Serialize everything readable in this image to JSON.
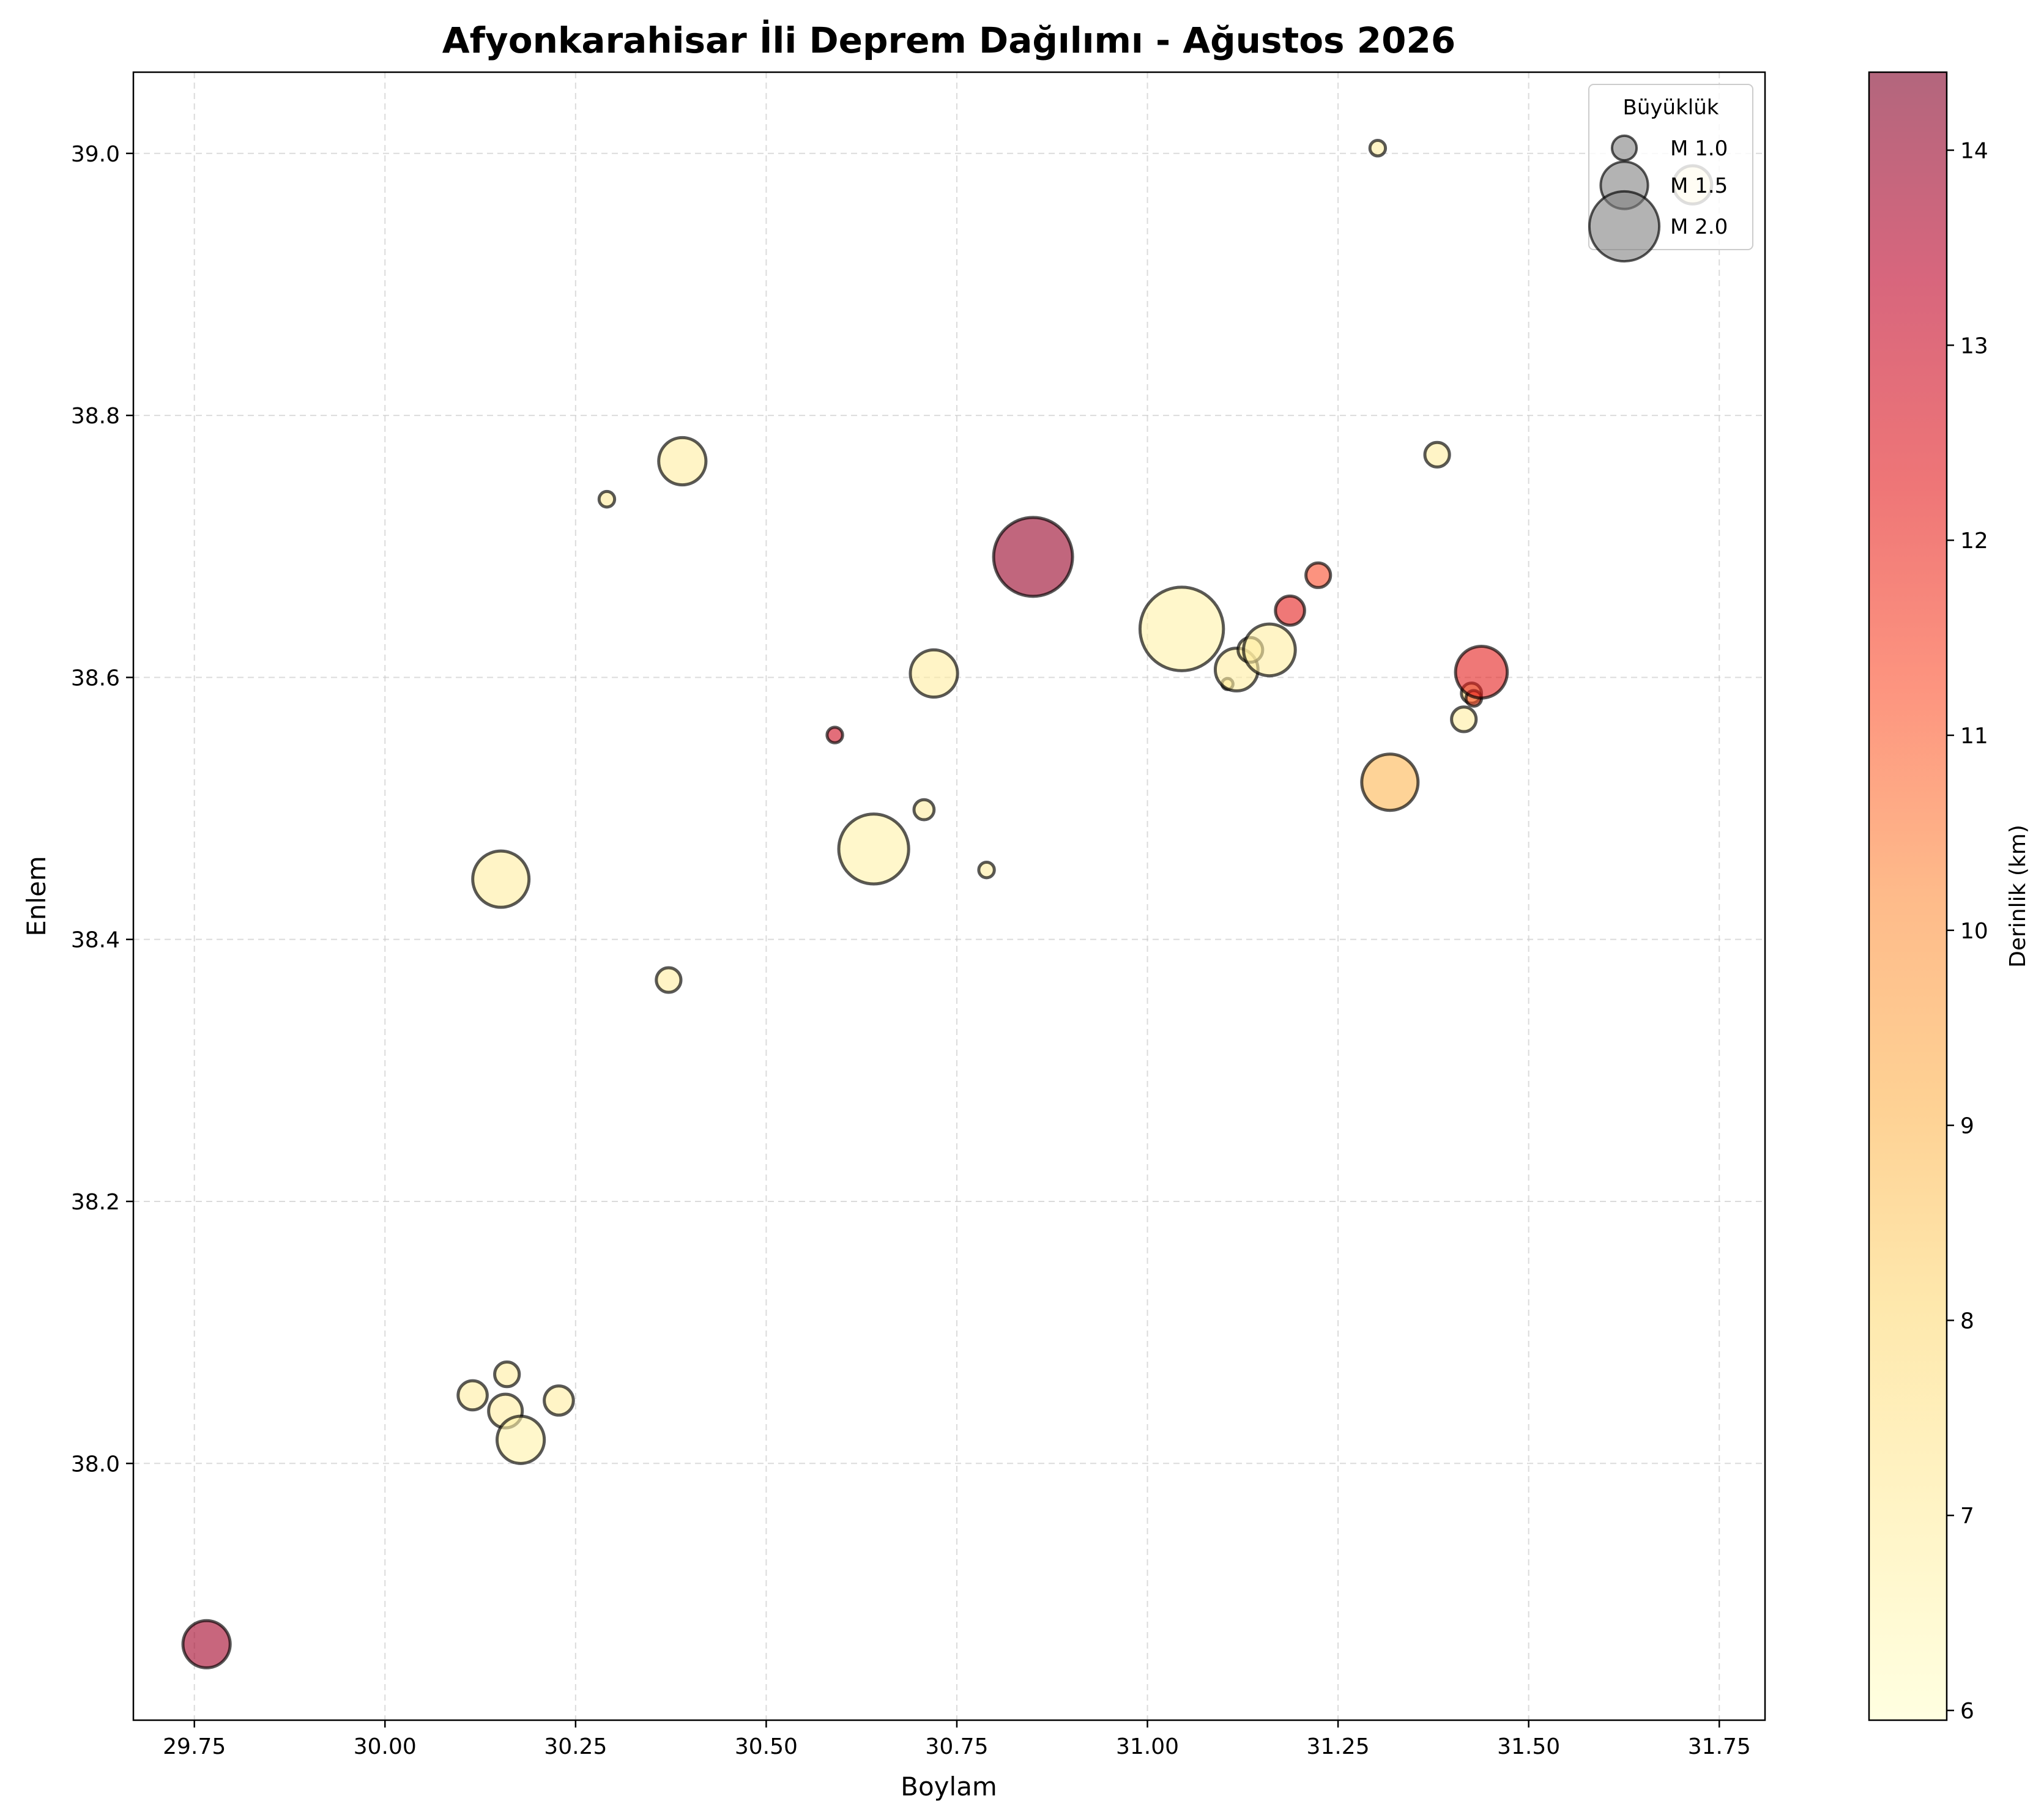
{
  "chart_data": {
    "type": "scatter",
    "title": "Afyonkarahisar İli Deprem Dağılımı - Ağustos 2026",
    "xlabel": "Boylam",
    "ylabel": "Enlem",
    "xlim": [
      29.67,
      31.81
    ],
    "ylim": [
      37.804,
      39.062
    ],
    "x_ticks": [
      "29.75",
      "30.00",
      "30.25",
      "30.50",
      "30.75",
      "31.00",
      "31.25",
      "31.50",
      "31.75"
    ],
    "y_ticks": [
      "38.0",
      "38.2",
      "38.4",
      "38.6",
      "38.8",
      "39.0"
    ],
    "grid": true,
    "colorbar": {
      "label": "Derinlik (km)",
      "min": 5.95,
      "max": 14.4,
      "ticks": [
        "6",
        "7",
        "8",
        "9",
        "10",
        "11",
        "12",
        "13",
        "14"
      ],
      "colormap": "YlOrRd"
    },
    "legend": {
      "title": "Büyüklük",
      "position": "top-right",
      "entries": [
        {
          "label": "M 1.0",
          "magnitude": 1.0
        },
        {
          "label": "M 1.5",
          "magnitude": 1.5
        },
        {
          "label": "M 2.0",
          "magnitude": 2.0
        }
      ]
    },
    "points": [
      {
        "lon": 29.766,
        "lat": 37.862,
        "mag": 1.5,
        "depth": 13.8
      },
      {
        "lon": 30.115,
        "lat": 38.052,
        "mag": 1.1,
        "depth": 7.0
      },
      {
        "lon": 30.16,
        "lat": 38.068,
        "mag": 1.0,
        "depth": 7.0
      },
      {
        "lon": 30.158,
        "lat": 38.04,
        "mag": 1.2,
        "depth": 7.0
      },
      {
        "lon": 30.178,
        "lat": 38.018,
        "mag": 1.5,
        "depth": 6.8
      },
      {
        "lon": 30.228,
        "lat": 38.048,
        "mag": 1.1,
        "depth": 7.0
      },
      {
        "lon": 30.152,
        "lat": 38.446,
        "mag": 1.7,
        "depth": 7.0
      },
      {
        "lon": 30.291,
        "lat": 38.736,
        "mag": 0.8,
        "depth": 7.2
      },
      {
        "lon": 30.39,
        "lat": 38.765,
        "mag": 1.5,
        "depth": 7.0
      },
      {
        "lon": 30.372,
        "lat": 38.369,
        "mag": 1.0,
        "depth": 7.0
      },
      {
        "lon": 30.59,
        "lat": 38.556,
        "mag": 0.8,
        "depth": 12.8
      },
      {
        "lon": 30.641,
        "lat": 38.469,
        "mag": 2.0,
        "depth": 6.8
      },
      {
        "lon": 30.707,
        "lat": 38.499,
        "mag": 0.9,
        "depth": 7.0
      },
      {
        "lon": 30.72,
        "lat": 38.603,
        "mag": 1.5,
        "depth": 7.0
      },
      {
        "lon": 30.789,
        "lat": 38.453,
        "mag": 0.8,
        "depth": 7.0
      },
      {
        "lon": 30.85,
        "lat": 38.692,
        "mag": 2.2,
        "depth": 14.0
      },
      {
        "lon": 31.045,
        "lat": 38.637,
        "mag": 2.3,
        "depth": 6.8
      },
      {
        "lon": 31.105,
        "lat": 38.595,
        "mag": 0.7,
        "depth": 7.5
      },
      {
        "lon": 31.117,
        "lat": 38.606,
        "mag": 1.4,
        "depth": 7.0
      },
      {
        "lon": 31.135,
        "lat": 38.621,
        "mag": 1.0,
        "depth": 7.0
      },
      {
        "lon": 31.16,
        "lat": 38.621,
        "mag": 1.6,
        "depth": 7.0
      },
      {
        "lon": 31.187,
        "lat": 38.651,
        "mag": 1.1,
        "depth": 12.2
      },
      {
        "lon": 31.224,
        "lat": 38.678,
        "mag": 1.0,
        "depth": 11.3
      },
      {
        "lon": 31.302,
        "lat": 39.004,
        "mag": 0.8,
        "depth": 7.0
      },
      {
        "lon": 31.318,
        "lat": 38.52,
        "mag": 1.7,
        "depth": 9.0
      },
      {
        "lon": 31.38,
        "lat": 38.77,
        "mag": 1.0,
        "depth": 7.0
      },
      {
        "lon": 31.415,
        "lat": 38.568,
        "mag": 1.0,
        "depth": 7.0
      },
      {
        "lon": 31.425,
        "lat": 38.588,
        "mag": 0.9,
        "depth": 8.0
      },
      {
        "lon": 31.428,
        "lat": 38.584,
        "mag": 0.8,
        "depth": 11.2
      },
      {
        "lon": 31.438,
        "lat": 38.604,
        "mag": 1.6,
        "depth": 12.2
      },
      {
        "lon": 31.715,
        "lat": 38.976,
        "mag": 1.3,
        "depth": 7.0
      }
    ]
  }
}
